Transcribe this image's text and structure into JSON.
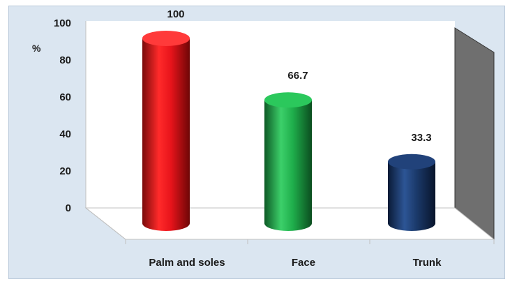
{
  "chart_data": {
    "type": "bar",
    "style": "3d-cylinder",
    "categories": [
      "Palm and soles",
      "Face",
      "Trunk"
    ],
    "values": [
      100,
      66.7,
      33.3
    ],
    "data_labels": [
      "100",
      "66.7",
      "33.3"
    ],
    "yticks": [
      "0",
      "20",
      "40",
      "60",
      "80",
      "100"
    ],
    "ylabel": "%",
    "ylim": [
      0,
      100
    ],
    "grid": false,
    "legend": "none",
    "colors": [
      "#e8141b",
      "#1fae4b",
      "#1b3a6b"
    ]
  }
}
